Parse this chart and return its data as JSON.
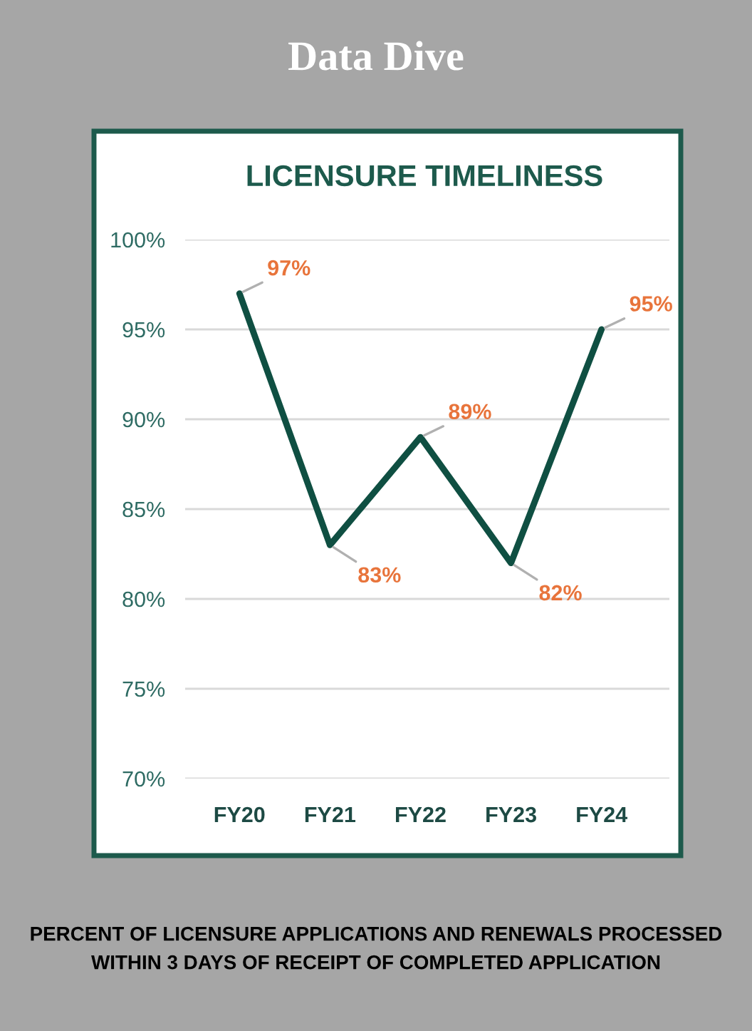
{
  "chart_data": {
    "type": "line",
    "title": "LICENSURE TIMELINESS",
    "subtitle": "Data Dive",
    "categories": [
      "FY20",
      "FY21",
      "FY22",
      "FY23",
      "FY24"
    ],
    "series": [
      {
        "color": "#0f4f42",
        "values": [
          97,
          83,
          89,
          82,
          95
        ],
        "value_labels": [
          "97%",
          "83%",
          "89%",
          "82%",
          "95%"
        ]
      }
    ],
    "ylim": [
      70,
      100
    ],
    "yticks": [
      {
        "value": 70,
        "label": "70%"
      },
      {
        "value": 75,
        "label": "75%"
      },
      {
        "value": 80,
        "label": "80%"
      },
      {
        "value": 85,
        "label": "85%"
      },
      {
        "value": 90,
        "label": "90%"
      },
      {
        "value": 95,
        "label": "95%"
      },
      {
        "value": 100,
        "label": "100%"
      }
    ],
    "grid": "y",
    "marker": "none",
    "line_style": "solid",
    "annotations": [
      "PERCENT OF LICENSURE APPLICATIONS AND RENEWALS PROCESSED WITHIN 3 DAYS OF RECEIPT OF COMPLETED APPLICATION"
    ]
  }
}
